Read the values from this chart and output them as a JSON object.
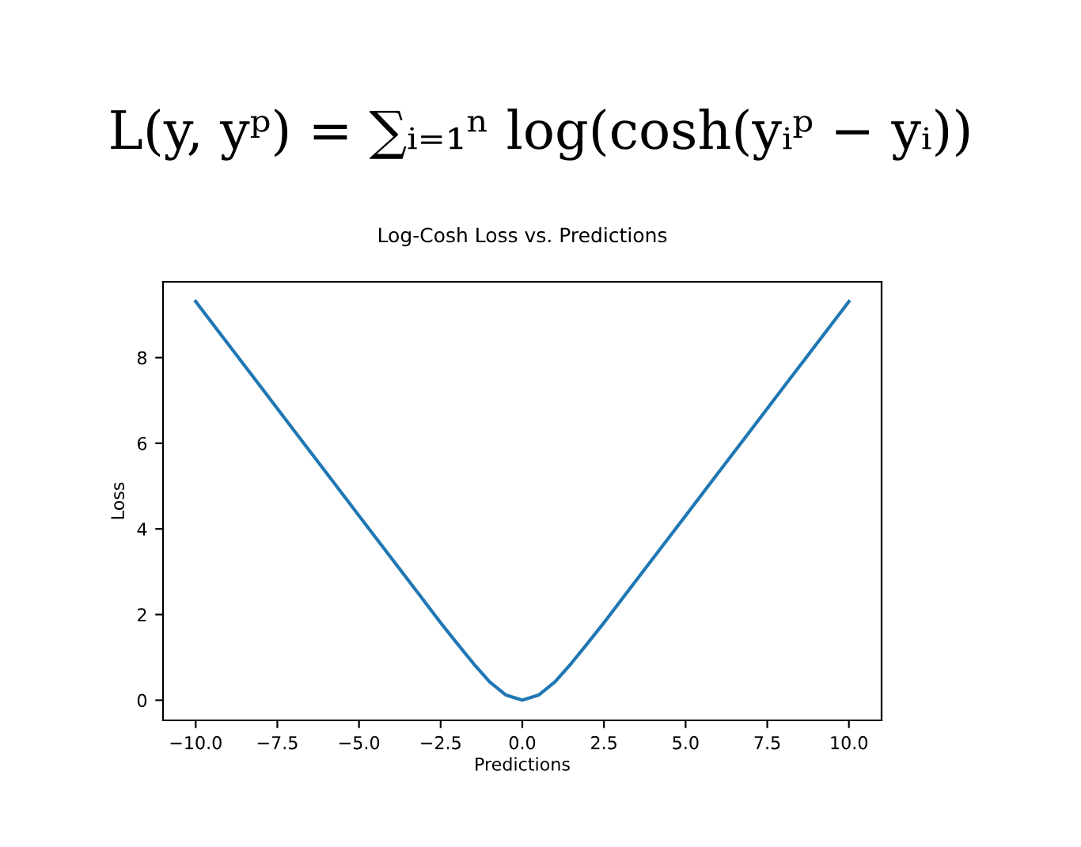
{
  "chart_data": {
    "type": "line",
    "title": "Log-Cosh Loss vs. Predictions",
    "xlabel": "Predictions",
    "ylabel": "Loss",
    "annotations": [
      "L(y, yᵖ) = ∑ᵢ₌₁ⁿ log(cosh(yᵢᵖ − yᵢ))"
    ],
    "x": [
      -10,
      -9,
      -8,
      -7,
      -6,
      -5,
      -4,
      -3,
      -2.5,
      -2,
      -1.5,
      -1,
      -0.5,
      0,
      0.5,
      1,
      1.5,
      2,
      2.5,
      3,
      4,
      5,
      6,
      7,
      8,
      9,
      10
    ],
    "series": [
      {
        "color": "#1f77b4",
        "values": [
          9.31,
          8.31,
          7.31,
          6.31,
          5.31,
          4.31,
          3.31,
          2.31,
          1.81,
          1.33,
          0.86,
          0.43,
          0.12,
          0,
          0.12,
          0.43,
          0.86,
          1.33,
          1.81,
          2.31,
          3.31,
          4.31,
          5.31,
          6.31,
          7.31,
          8.31,
          9.31
        ]
      }
    ],
    "xlim": [
      -11,
      11
    ],
    "ylim": [
      -0.47,
      9.77
    ],
    "xticks": [
      {
        "value": -10,
        "label": "−10.0"
      },
      {
        "value": -7.5,
        "label": "−7.5"
      },
      {
        "value": -5,
        "label": "−5.0"
      },
      {
        "value": -2.5,
        "label": "−2.5"
      },
      {
        "value": 0,
        "label": "0.0"
      },
      {
        "value": 2.5,
        "label": "2.5"
      },
      {
        "value": 5,
        "label": "5.0"
      },
      {
        "value": 7.5,
        "label": "7.5"
      },
      {
        "value": 10,
        "label": "10.0"
      }
    ],
    "yticks": [
      0,
      2,
      4,
      6,
      8
    ],
    "grid": false,
    "legend": false,
    "marker": "none",
    "line_style": "solid"
  }
}
